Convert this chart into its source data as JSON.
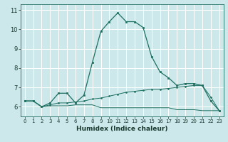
{
  "xlabel": "Humidex (Indice chaleur)",
  "background_color": "#cce8eb",
  "grid_color": "#ffffff",
  "line_color": "#1e7060",
  "xlim": [
    -0.5,
    23.5
  ],
  "ylim": [
    5.5,
    11.3
  ],
  "yticks": [
    6,
    7,
    8,
    9,
    10,
    11
  ],
  "xticks": [
    0,
    1,
    2,
    3,
    4,
    5,
    6,
    7,
    8,
    9,
    10,
    11,
    12,
    13,
    14,
    15,
    16,
    17,
    18,
    19,
    20,
    21,
    22,
    23
  ],
  "series1_x": [
    0,
    1,
    2,
    3,
    4,
    5,
    6,
    7,
    8,
    9,
    10,
    11,
    12,
    13,
    14,
    15,
    16,
    17,
    18,
    19,
    20,
    21,
    22,
    23
  ],
  "series1_y": [
    6.3,
    6.3,
    6.0,
    6.2,
    6.7,
    6.7,
    6.2,
    6.6,
    8.3,
    9.9,
    10.4,
    10.85,
    10.4,
    10.4,
    10.1,
    8.6,
    7.8,
    7.5,
    7.1,
    7.2,
    7.2,
    7.1,
    6.3,
    5.8
  ],
  "series2_x": [
    0,
    1,
    2,
    3,
    4,
    5,
    6,
    7,
    8,
    9,
    10,
    11,
    12,
    13,
    14,
    15,
    16,
    17,
    18,
    19,
    20,
    21,
    22,
    23
  ],
  "series2_y": [
    6.3,
    6.3,
    6.0,
    6.05,
    6.05,
    6.05,
    6.1,
    6.1,
    6.1,
    5.95,
    5.95,
    5.95,
    5.95,
    5.95,
    5.95,
    5.95,
    5.95,
    5.95,
    5.85,
    5.85,
    5.85,
    5.8,
    5.8,
    5.8
  ],
  "series3_x": [
    0,
    1,
    2,
    3,
    4,
    5,
    6,
    7,
    8,
    9,
    10,
    11,
    12,
    13,
    14,
    15,
    16,
    17,
    18,
    19,
    20,
    21,
    22,
    23
  ],
  "series3_y": [
    6.3,
    6.3,
    6.0,
    6.1,
    6.2,
    6.2,
    6.25,
    6.3,
    6.4,
    6.45,
    6.55,
    6.65,
    6.75,
    6.8,
    6.85,
    6.9,
    6.9,
    6.95,
    7.0,
    7.05,
    7.1,
    7.1,
    6.5,
    5.8
  ]
}
